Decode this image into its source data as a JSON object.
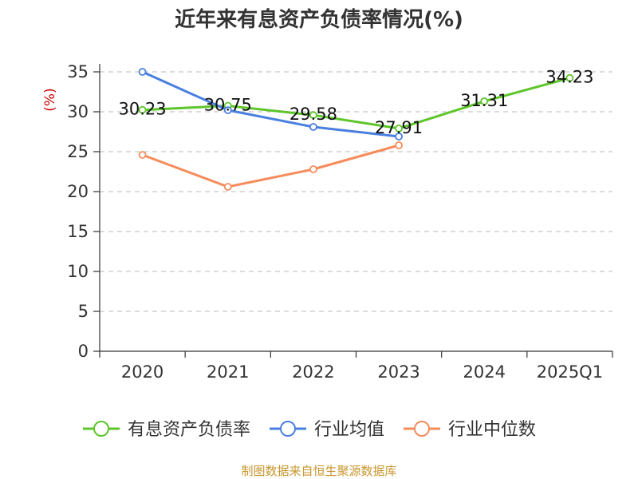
{
  "chart_data": {
    "type": "line",
    "title": "近年来有息资产负债率情况(%)",
    "ylabel": "(%)",
    "categories": [
      "2020",
      "2021",
      "2022",
      "2023",
      "2024",
      "2025Q1"
    ],
    "ylim": [
      0,
      35
    ],
    "yticks": [
      "0",
      "5",
      "10",
      "15",
      "20",
      "25",
      "30",
      "35"
    ],
    "grid": true,
    "legend_position": "bottom",
    "series": [
      {
        "name": "有息资产负债率",
        "color": "#5ec52b",
        "values": [
          30.23,
          30.75,
          29.58,
          27.91,
          31.31,
          34.23
        ],
        "labels": [
          "30.23",
          "30.75",
          "29.58",
          "27.91",
          "31.31",
          "34.23"
        ]
      },
      {
        "name": "行业均值",
        "color": "#4a7fe0",
        "values": [
          35.0,
          30.2,
          28.1,
          26.9,
          null,
          null
        ]
      },
      {
        "name": "行业中位数",
        "color": "#f58c5a",
        "values": [
          24.6,
          20.6,
          22.8,
          25.8,
          null,
          null
        ]
      }
    ],
    "source": "制图数据来自恒生聚源数据库"
  }
}
